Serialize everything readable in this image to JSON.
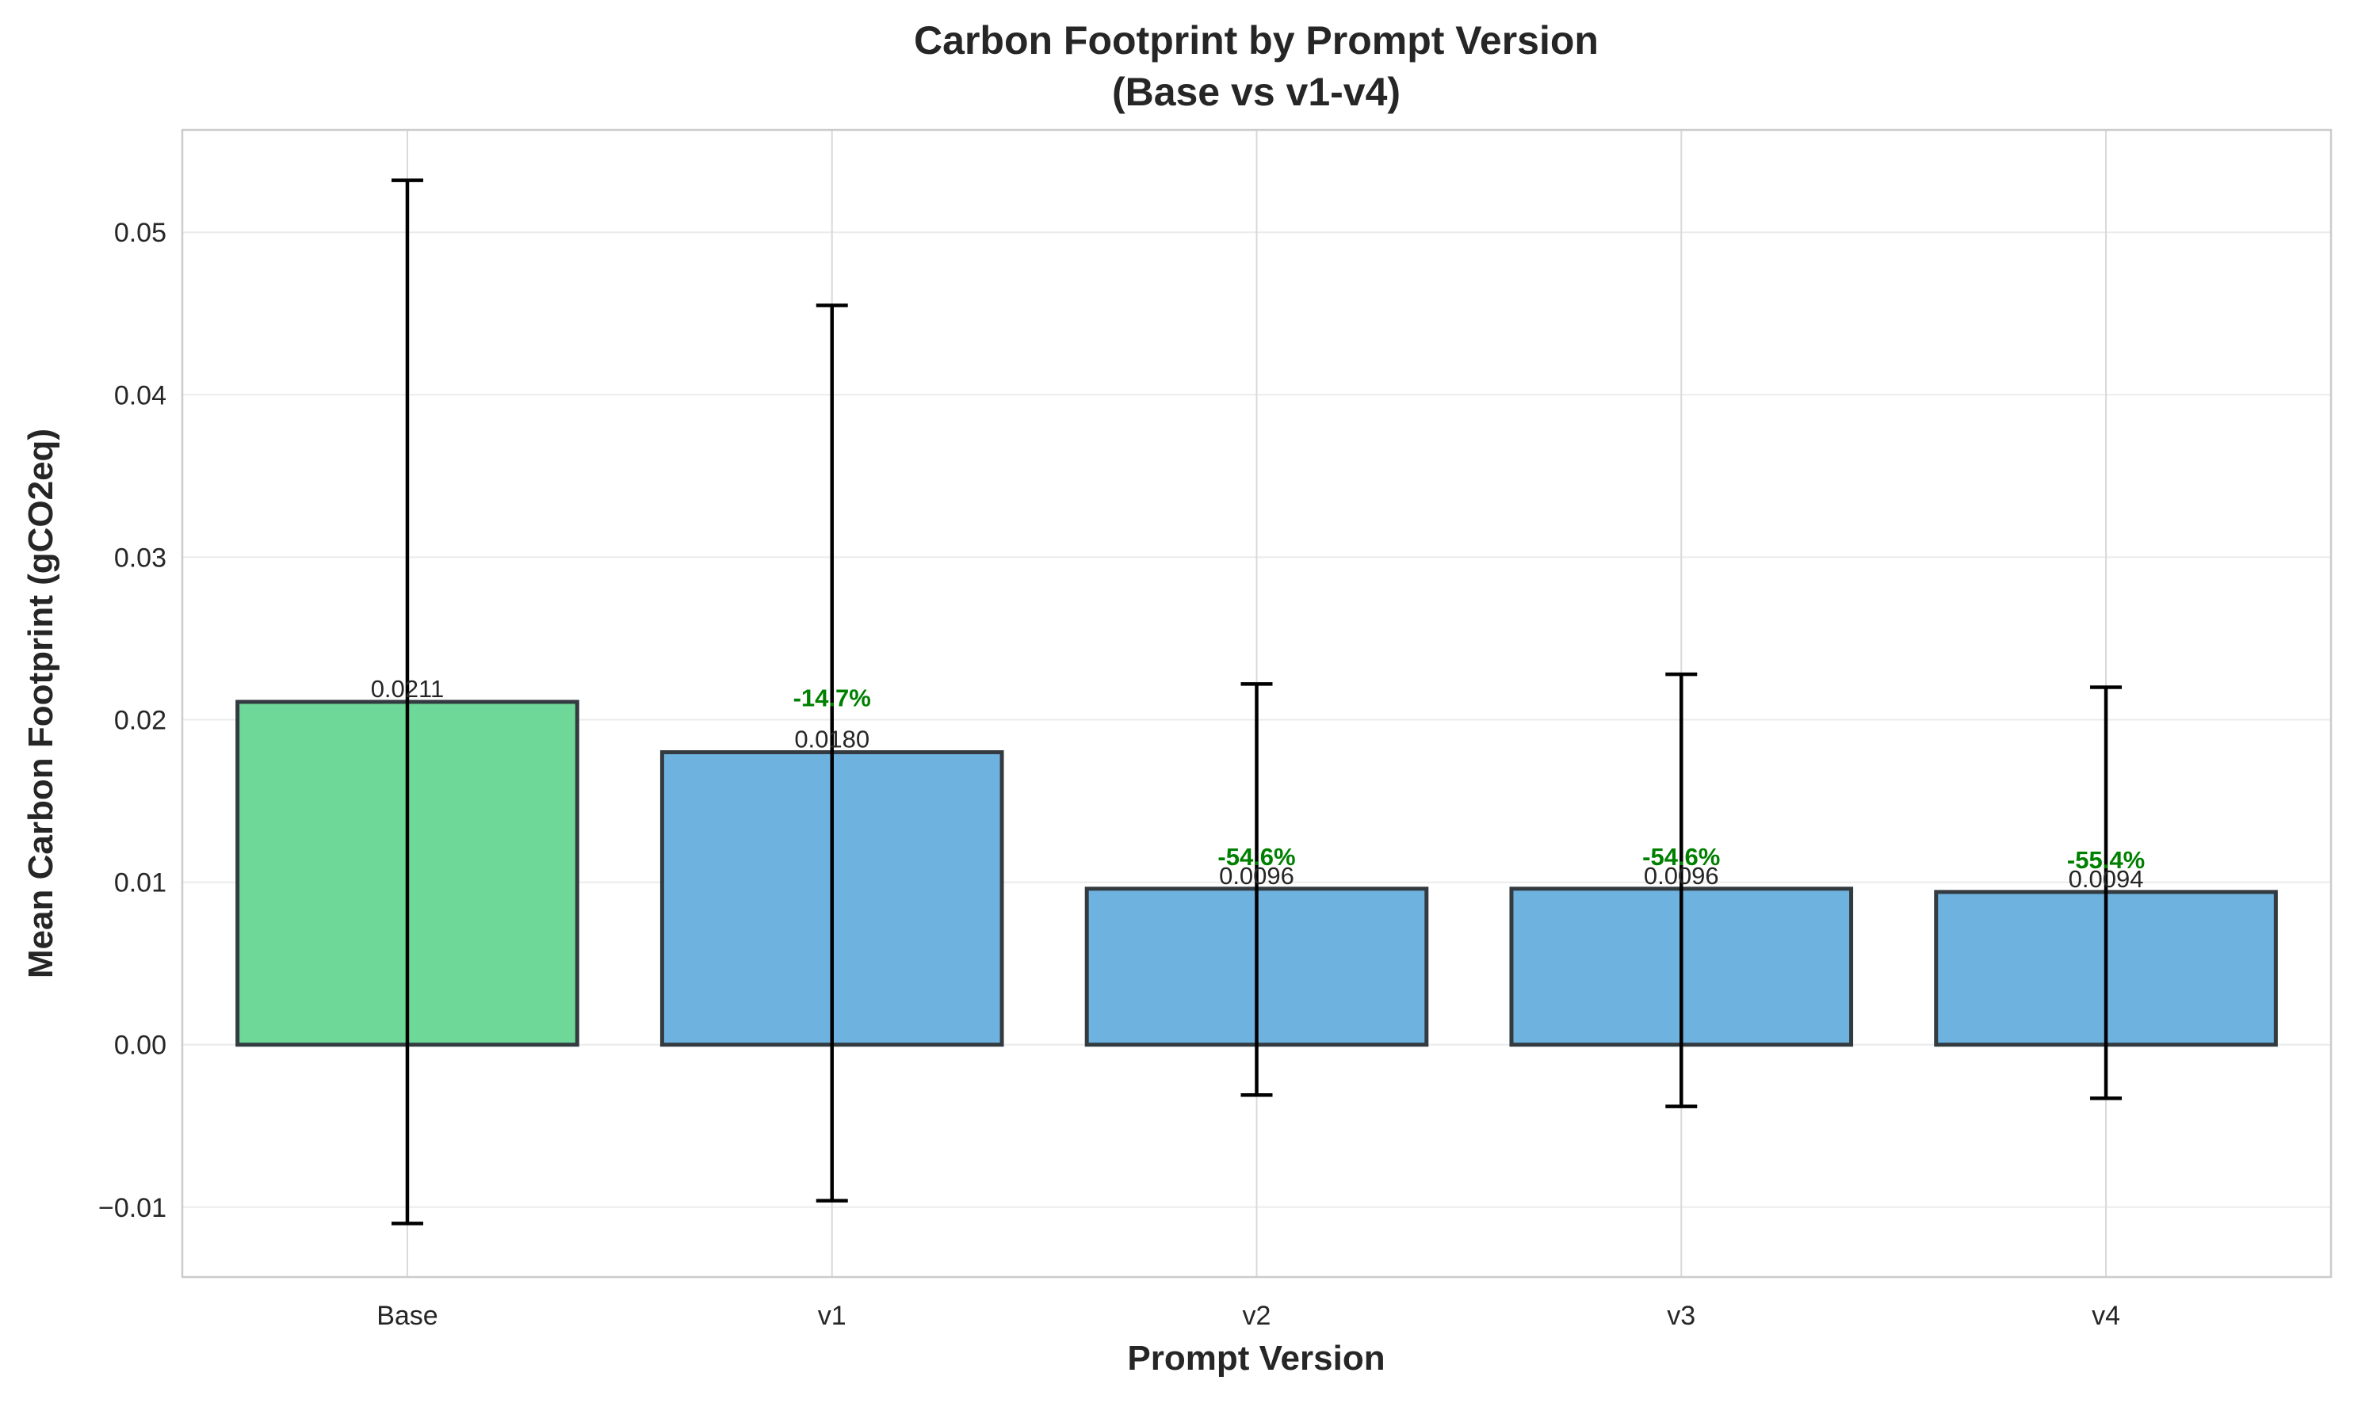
{
  "chart_data": {
    "type": "bar",
    "title": "Carbon Footprint by Prompt Version",
    "subtitle": "(Base vs v1-v4)",
    "xlabel": "Prompt Version",
    "ylabel": "Mean Carbon Footprint (gCO2eq)",
    "categories": [
      "Base",
      "v1",
      "v2",
      "v3",
      "v4"
    ],
    "values": [
      0.0211,
      0.018,
      0.0096,
      0.0096,
      0.0094
    ],
    "value_labels": [
      "0.0211",
      "0.0180",
      "0.0096",
      "0.0096",
      "0.0094"
    ],
    "error_low": [
      -0.011,
      -0.0096,
      -0.0031,
      -0.0038,
      -0.0033
    ],
    "error_high": [
      0.0532,
      0.0455,
      0.0222,
      0.0228,
      0.022
    ],
    "change_labels": [
      "",
      "-14.7%",
      "-54.6%",
      "-54.6%",
      "-55.4%"
    ],
    "bar_colors": [
      "#6dd898",
      "#6eb3e0",
      "#6eb3e0",
      "#6eb3e0",
      "#6eb3e0"
    ],
    "bar_edge_color": "#333b40",
    "change_label_color": "#008000",
    "ylim": [
      -0.0143,
      0.0563
    ],
    "yticks": [
      -0.01,
      0.0,
      0.01,
      0.02,
      0.03,
      0.04,
      0.05
    ],
    "ytick_labels": [
      "−0.01",
      "0.00",
      "0.01",
      "0.02",
      "0.03",
      "0.04",
      "0.05"
    ],
    "grid": true,
    "legend": "none"
  }
}
